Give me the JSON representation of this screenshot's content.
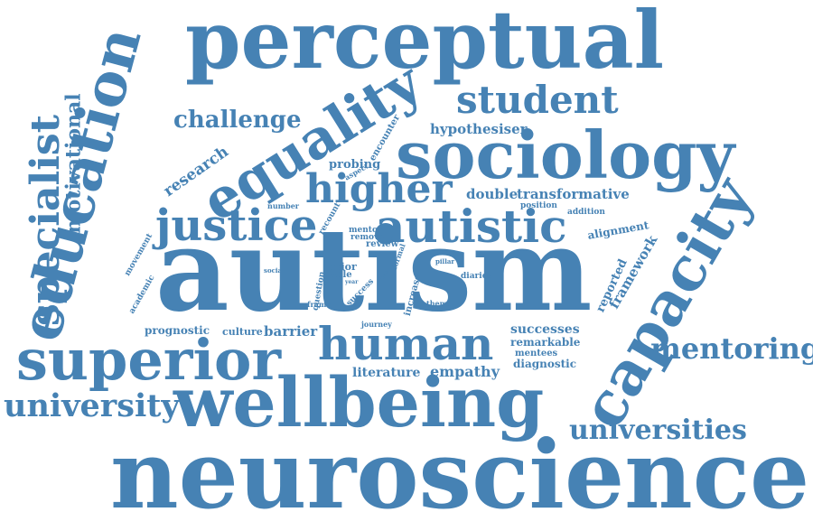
{
  "color": "#4682b4",
  "words": {
    "neuroscience": "neuroscience",
    "autism": "autism",
    "perceptual": "perceptual",
    "wellbeing": "wellbeing",
    "superior": "superior",
    "education": "education",
    "sociology": "sociology",
    "capacity": "capacity",
    "equality": "equality",
    "human": "human",
    "autistic": "autistic",
    "justice": "justice",
    "higher": "higher",
    "specialist": "specialist",
    "student": "student",
    "university": "university",
    "mentoring": "mentoring",
    "universities": "universities",
    "challenge": "challenge",
    "motivational": "motivational",
    "research": "research",
    "hypothesiser": "hypothesiser",
    "transformative": "transformative",
    "double": "double",
    "probing": "probing",
    "encounter": "encounter",
    "aspect": "aspect",
    "number": "number",
    "recount": "recount",
    "mentor": "mentor",
    "remove": "remove",
    "review": "review",
    "position": "position",
    "addition": "addition",
    "alignment": "alignment",
    "framework": "framework",
    "reported": "reported",
    "movement": "movement",
    "academic": "academic",
    "social": "social",
    "question": "question",
    "frame": "frame",
    "prior": "prior",
    "able": "able",
    "year": "year",
    "success": "success",
    "use": "use",
    "formal": "formal",
    "pillar": "pillar",
    "increase": "increase",
    "diaries": "diaries",
    "theme": "theme",
    "journey": "journey",
    "mentees": "mentees",
    "successes": "successes",
    "remarkable": "remarkable",
    "diagnostic": "diagnostic",
    "prognostic": "prognostic",
    "culture": "culture",
    "barrier": "barrier",
    "literature": "literature",
    "empathy": "empathy"
  }
}
